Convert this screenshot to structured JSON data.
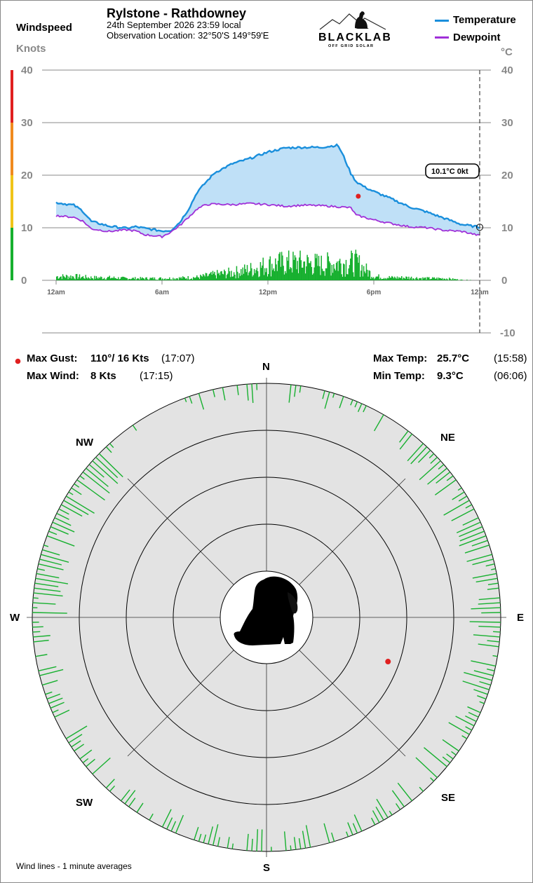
{
  "header": {
    "title": "Rylstone - Rathdowney",
    "date_line": "24th September 2026  23:59 local",
    "location_line": "Observation Location:  32°50'S 149°59'E",
    "logo_text": "BLACKLAB",
    "logo_sub": "OFF GRID SOLAR"
  },
  "left_axis": {
    "title": "Windspeed",
    "unit": "Knots",
    "ticks": [
      "40",
      "30",
      "20",
      "10",
      "0"
    ]
  },
  "right_axis": {
    "unit": "°C",
    "ticks": [
      "40",
      "30",
      "20",
      "10",
      "0",
      "-10"
    ]
  },
  "legend": [
    {
      "label": "Temperature",
      "color": "#1a8fdc"
    },
    {
      "label": "Dewpoint",
      "color": "#a030d8"
    }
  ],
  "x_ticks": [
    "12am",
    "6am",
    "12pm",
    "6pm",
    "12am"
  ],
  "current_readout": "10.1°C  0kt",
  "colors": {
    "temperature": "#1a8fdc",
    "dewpoint": "#a030d8",
    "fill": "#bfe0f7",
    "wind": "#17b02f",
    "gust_marker": "#e02020",
    "compass_bg": "#e3e3e3",
    "scale_bands": [
      "#17b02f",
      "#f0c419",
      "#f08a1e",
      "#e02020"
    ]
  },
  "stats": {
    "max_gust_label": "Max Gust:",
    "max_gust_value": "110°/  16 Kts",
    "max_gust_time": "(17:07)",
    "max_wind_label": "Max Wind:",
    "max_wind_value": "8 Kts",
    "max_wind_time": "(17:15)",
    "max_temp_label": "Max Temp:",
    "max_temp_value": "25.7°C",
    "max_temp_time": "(15:58)",
    "min_temp_label": "Min Temp:",
    "min_temp_value": "9.3°C",
    "min_temp_time": "(06:06)"
  },
  "compass": {
    "labels": {
      "n": "N",
      "ne": "NE",
      "e": "E",
      "se": "SE",
      "s": "S",
      "sw": "SW",
      "w": "W",
      "nw": "NW"
    },
    "footnote": "Wind lines - 1 minute averages"
  },
  "chart_data": [
    {
      "type": "line",
      "x_unit": "hour of day",
      "x_ticks": [
        "12am",
        "6am",
        "12pm",
        "6pm",
        "12am"
      ],
      "xlim": [
        0,
        24
      ],
      "y_left": {
        "label": "Knots",
        "ylim": [
          0,
          40
        ]
      },
      "y_right": {
        "label": "°C",
        "ylim": [
          -10,
          40
        ]
      },
      "grid": true,
      "series": [
        {
          "name": "Temperature",
          "axis": "right",
          "x": [
            0,
            1,
            1.5,
            2,
            3,
            4,
            4.5,
            5,
            6,
            6.5,
            7,
            7.5,
            8,
            8.5,
            9,
            10,
            11,
            12,
            13,
            14,
            15,
            15.97,
            16.3,
            16.7,
            17,
            17.5,
            18,
            19,
            20,
            21,
            22,
            23,
            24
          ],
          "y": [
            14.8,
            14.3,
            13.2,
            11.2,
            10.3,
            9.9,
            10.2,
            9.9,
            9.4,
            9.5,
            11,
            13.5,
            16.8,
            18.7,
            20.5,
            22.2,
            23.2,
            24.4,
            25.2,
            25.3,
            25.3,
            25.7,
            23.5,
            20.3,
            18.8,
            17.7,
            16.9,
            15.5,
            14,
            13,
            11.8,
            10.6,
            10.1
          ]
        },
        {
          "name": "Dewpoint",
          "axis": "right",
          "x": [
            0,
            1,
            1.5,
            2,
            3,
            4,
            4.5,
            5,
            6,
            6.5,
            7,
            7.5,
            8,
            8.5,
            9,
            10,
            11,
            12,
            13,
            14,
            15,
            16,
            16.7,
            17,
            18,
            19,
            20,
            21,
            22,
            23,
            24
          ],
          "y": [
            12.3,
            12,
            11.3,
            9.8,
            9.3,
            9.6,
            9.4,
            8.7,
            8.3,
            9.2,
            10.4,
            12,
            13.6,
            14.4,
            14.5,
            14.4,
            14.6,
            14.4,
            14.1,
            14.3,
            14.2,
            14,
            13.8,
            12.4,
            11.5,
            10.8,
            10.2,
            10,
            9.5,
            9.3,
            8.5
          ]
        },
        {
          "name": "Windspeed",
          "axis": "left",
          "type": "bar",
          "x": [
            0,
            1,
            2,
            3,
            4,
            5,
            6,
            7,
            8,
            9,
            10,
            11,
            12,
            13,
            14,
            15,
            16,
            17,
            18,
            19,
            20,
            21,
            22,
            23
          ],
          "y": [
            1,
            1,
            0.7,
            0.7,
            0.5,
            0.5,
            0.5,
            0.6,
            0.8,
            1.5,
            2,
            2.8,
            4,
            4.5,
            4.5,
            4,
            4.5,
            4.5,
            1,
            0.7,
            0.7,
            0.5,
            0.5,
            0.1
          ]
        },
        {
          "name": "Max Gust",
          "axis": "left",
          "type": "scatter",
          "x": [
            17.12
          ],
          "y": [
            16
          ]
        }
      ]
    },
    {
      "type": "scatter",
      "coordinate_system": "polar",
      "directions": [
        "N",
        "NE",
        "E",
        "SE",
        "S",
        "SW",
        "W",
        "NW"
      ],
      "rings": 5,
      "max_gust_direction_deg": 110,
      "max_gust_speed_kts": 16,
      "wind_direction_sectors": [
        {
          "from_deg": 0,
          "to_deg": 40,
          "density": 0.3
        },
        {
          "from_deg": 40,
          "to_deg": 90,
          "density": 0.8
        },
        {
          "from_deg": 90,
          "to_deg": 135,
          "density": 0.8
        },
        {
          "from_deg": 135,
          "to_deg": 225,
          "density": 0.45
        },
        {
          "from_deg": 225,
          "to_deg": 270,
          "density": 0.5
        },
        {
          "from_deg": 270,
          "to_deg": 315,
          "density": 0.95
        },
        {
          "from_deg": 315,
          "to_deg": 360,
          "density": 0.45
        }
      ]
    }
  ]
}
